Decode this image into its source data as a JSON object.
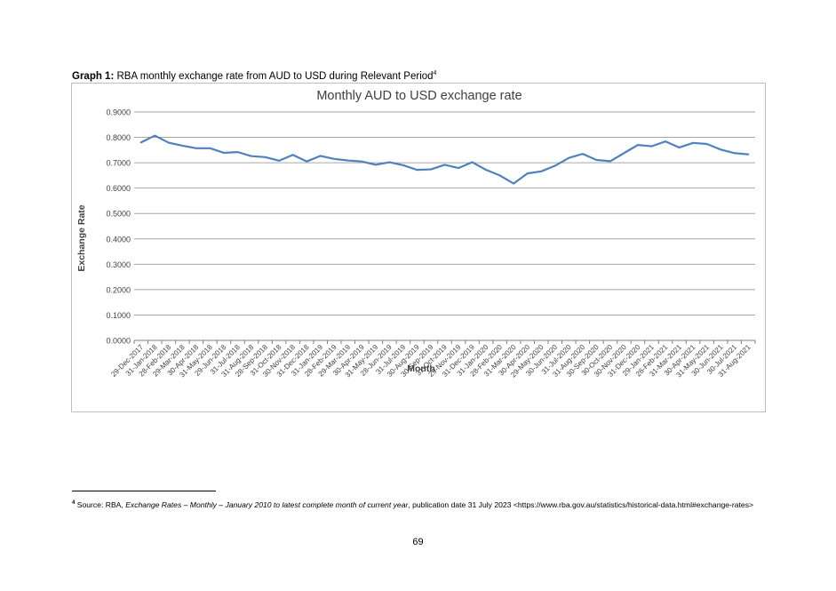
{
  "caption": {
    "label": "Graph 1:",
    "text": "RBA monthly exchange rate from AUD to USD during Relevant Period",
    "footnote_ref": "4"
  },
  "chart_data": {
    "type": "line",
    "title": "Monthly AUD to USD exchange rate",
    "xlabel": "Month",
    "ylabel": "Exchange Rate",
    "ylim": [
      0,
      0.9
    ],
    "yticks": [
      "0.0000",
      "0.1000",
      "0.2000",
      "0.3000",
      "0.4000",
      "0.5000",
      "0.6000",
      "0.7000",
      "0.8000",
      "0.9000"
    ],
    "grid": true,
    "categories": [
      "29-Dec-2017",
      "31-Jan-2018",
      "28-Feb-2018",
      "29-Mar-2018",
      "30-Apr-2018",
      "31-May-2018",
      "29-Jun-2018",
      "31-Jul-2018",
      "31-Aug-2018",
      "28-Sep-2018",
      "31-Oct-2018",
      "30-Nov-2018",
      "31-Dec-2018",
      "31-Jan-2019",
      "28-Feb-2019",
      "29-Mar-2019",
      "30-Apr-2019",
      "31-May-2019",
      "28-Jun-2019",
      "31-Jul-2019",
      "30-Aug-2019",
      "30-Sep-2019",
      "31-Oct-2019",
      "29-Nov-2019",
      "31-Dec-2019",
      "31-Jan-2020",
      "28-Feb-2020",
      "31-Mar-2020",
      "30-Apr-2020",
      "29-May-2020",
      "30-Jun-2020",
      "31-Jul-2020",
      "31-Aug-2020",
      "30-Sep-2020",
      "30-Oct-2020",
      "30-Nov-2020",
      "31-Dec-2020",
      "29-Jan-2021",
      "26-Feb-2021",
      "31-Mar-2021",
      "30-Apr-2021",
      "31-May-2021",
      "30-Jun-2021",
      "30-Jul-2021",
      "31-Aug-2021"
    ],
    "series": [
      {
        "color": "#4f81bd",
        "values": [
          0.78,
          0.807,
          0.779,
          0.767,
          0.757,
          0.757,
          0.739,
          0.742,
          0.726,
          0.722,
          0.708,
          0.731,
          0.705,
          0.727,
          0.715,
          0.709,
          0.705,
          0.692,
          0.702,
          0.69,
          0.672,
          0.674,
          0.692,
          0.679,
          0.702,
          0.672,
          0.65,
          0.618,
          0.658,
          0.666,
          0.688,
          0.719,
          0.735,
          0.711,
          0.706,
          0.738,
          0.77,
          0.765,
          0.784,
          0.76,
          0.778,
          0.774,
          0.752,
          0.738,
          0.733
        ]
      }
    ]
  },
  "footnote": {
    "number": "4",
    "prefix": "Source: RBA,",
    "title": "Exchange Rates – Monthly – January 2010 to latest complete month of current year",
    "suffix": ", publication date 31 July 2023 <https://www.rba.gov.au/statistics/historical-data.html#exchange-rates>"
  },
  "page": {
    "number": "69"
  }
}
